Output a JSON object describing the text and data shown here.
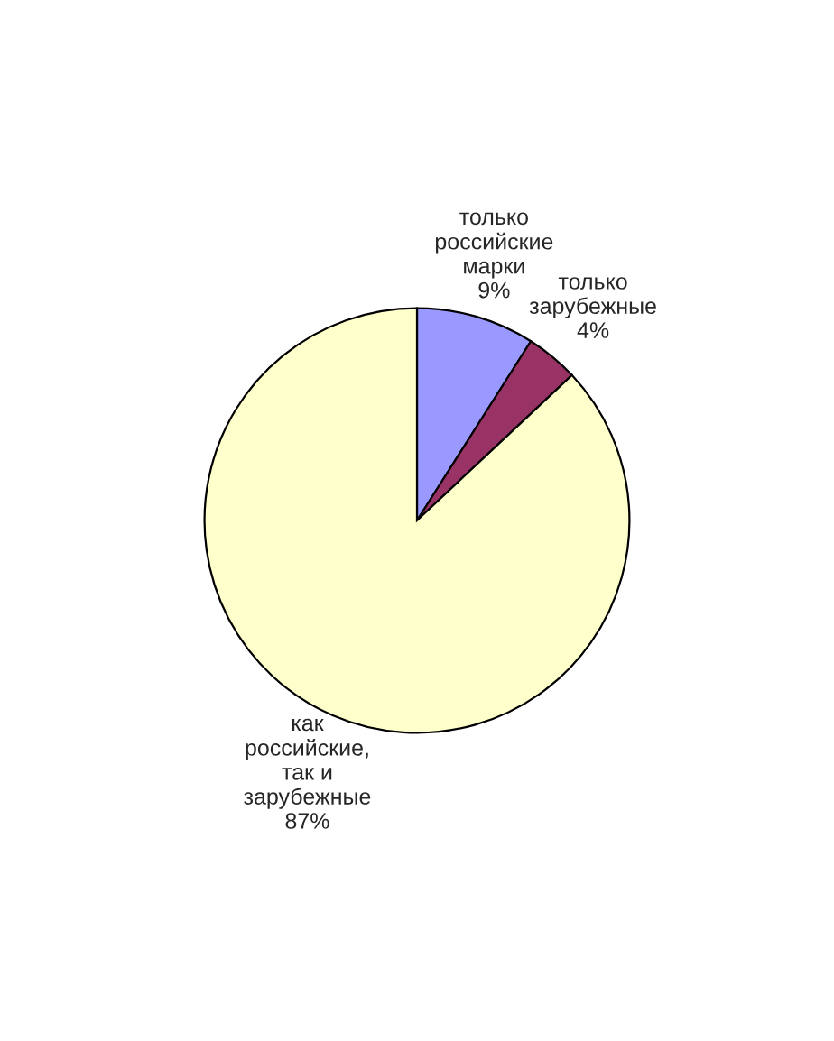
{
  "chart_data": {
    "type": "pie",
    "categories": [
      "только\nроссийские\nмарки",
      "только\nзарубежные",
      "как\nроссийские,\nтак и\nзарубежные"
    ],
    "values": [
      9,
      4,
      87
    ],
    "value_labels": [
      "9%",
      "4%",
      "87%"
    ],
    "colors": [
      "#9999ff",
      "#993366",
      "#ffffcc"
    ]
  }
}
